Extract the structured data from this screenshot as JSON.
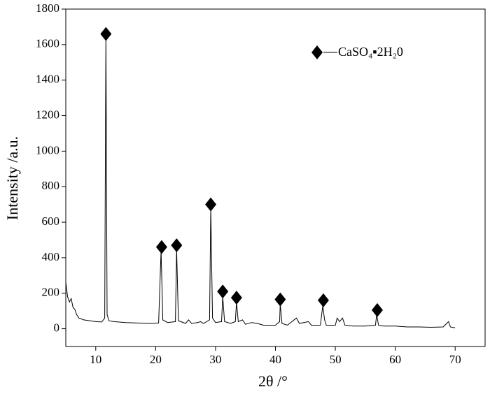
{
  "chart_data": {
    "type": "line",
    "xlabel": "2θ /°",
    "ylabel": "Intensity /a.u.",
    "x": [
      5,
      5.3,
      5.6,
      5.9,
      6.2,
      6.5,
      6.8,
      7.2,
      8,
      9,
      10,
      11,
      11.5,
      11.7,
      11.9,
      12.2,
      13,
      15,
      17,
      19,
      20.5,
      20.9,
      21.2,
      22,
      23.3,
      23.5,
      23.8,
      25,
      25.5,
      26,
      27,
      27.5,
      28,
      29,
      29.2,
      29.5,
      30,
      31,
      31.2,
      31.5,
      32.5,
      33.3,
      33.5,
      33.8,
      34.5,
      35,
      36,
      37,
      38,
      40,
      40.7,
      40.8,
      41.1,
      42,
      43.5,
      44,
      45.5,
      46,
      47.5,
      47.9,
      48.2,
      48.5,
      50,
      50.3,
      50.7,
      51.2,
      51.6,
      53,
      55,
      56.7,
      56.9,
      57.2,
      58,
      60,
      62,
      64,
      66,
      68,
      68.9,
      69.2,
      70
    ],
    "series": [
      {
        "name": "CaSO₄▪2H₂0",
        "color": "#000000",
        "values": [
          260,
          180,
          150,
          170,
          120,
          110,
          80,
          60,
          50,
          45,
          40,
          38,
          60,
          1650,
          80,
          45,
          40,
          35,
          32,
          30,
          32,
          440,
          50,
          35,
          40,
          450,
          45,
          30,
          50,
          30,
          35,
          40,
          30,
          50,
          680,
          60,
          35,
          40,
          180,
          40,
          30,
          40,
          150,
          40,
          50,
          25,
          35,
          30,
          20,
          20,
          40,
          140,
          30,
          20,
          60,
          30,
          40,
          20,
          20,
          130,
          50,
          20,
          20,
          60,
          40,
          60,
          20,
          15,
          15,
          20,
          80,
          20,
          15,
          15,
          10,
          10,
          8,
          10,
          40,
          10,
          5
        ]
      }
    ],
    "markers": {
      "x": [
        11.7,
        21,
        23.5,
        29.2,
        31.2,
        33.5,
        40.8,
        48,
        57
      ],
      "values": [
        1660,
        460,
        470,
        700,
        210,
        175,
        165,
        160,
        105
      ]
    },
    "xlim": [
      5,
      75
    ],
    "ylim": [
      -100,
      1800
    ],
    "xticks": [
      10,
      20,
      30,
      40,
      50,
      60,
      70
    ],
    "yticks": [
      0,
      200,
      400,
      600,
      800,
      1000,
      1200,
      1400,
      1600,
      1800
    ]
  }
}
